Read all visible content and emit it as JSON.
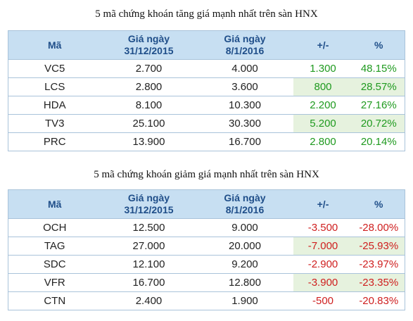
{
  "gainers": {
    "title": "5 mã chứng khoán tăng giá mạnh nhất trên sàn HNX",
    "headers": {
      "code": "Mã",
      "p1_line1": "Giá ngày",
      "p1_line2": "31/12/2015",
      "p2_line1": "Giá ngày",
      "p2_line2": "8/1/2016",
      "diff": "+/-",
      "pct": "%"
    },
    "rows": [
      {
        "code": "VC5",
        "p1": "2.700",
        "p2": "4.000",
        "diff": "1.300",
        "pct": "48.15%"
      },
      {
        "code": "LCS",
        "p1": "2.800",
        "p2": "3.600",
        "diff": "800",
        "pct": "28.57%"
      },
      {
        "code": "HDA",
        "p1": "8.100",
        "p2": "10.300",
        "diff": "2.200",
        "pct": "27.16%"
      },
      {
        "code": "TV3",
        "p1": "25.100",
        "p2": "30.300",
        "diff": "5.200",
        "pct": "20.72%"
      },
      {
        "code": "PRC",
        "p1": "13.900",
        "p2": "16.700",
        "diff": "2.800",
        "pct": "20.14%"
      }
    ]
  },
  "losers": {
    "title": "5 mã chứng khoán giảm giá mạnh nhất trên sàn HNX",
    "headers": {
      "code": "Mã",
      "p1_line1": "Giá ngày",
      "p1_line2": "31/12/2015",
      "p2_line1": "Giá ngày",
      "p2_line2": "8/1/2016",
      "diff": "+/-",
      "pct": "%"
    },
    "rows": [
      {
        "code": "OCH",
        "p1": "12.500",
        "p2": "9.000",
        "diff": "-3.500",
        "pct": "-28.00%"
      },
      {
        "code": "TAG",
        "p1": "27.000",
        "p2": "20.000",
        "diff": "-7.000",
        "pct": "-25.93%"
      },
      {
        "code": "SDC",
        "p1": "12.100",
        "p2": "9.200",
        "diff": "-2.900",
        "pct": "-23.97%"
      },
      {
        "code": "VFR",
        "p1": "16.700",
        "p2": "12.800",
        "diff": "-3.900",
        "pct": "-23.35%"
      },
      {
        "code": "CTN",
        "p1": "2.400",
        "p2": "1.900",
        "diff": "-500",
        "pct": "-20.83%"
      }
    ]
  },
  "colors": {
    "header_bg": "#c7dff2",
    "header_text": "#1f4e89",
    "shade_green": "#e6f2de",
    "gain": "#1f9a1f",
    "loss": "#cf1f1f"
  }
}
